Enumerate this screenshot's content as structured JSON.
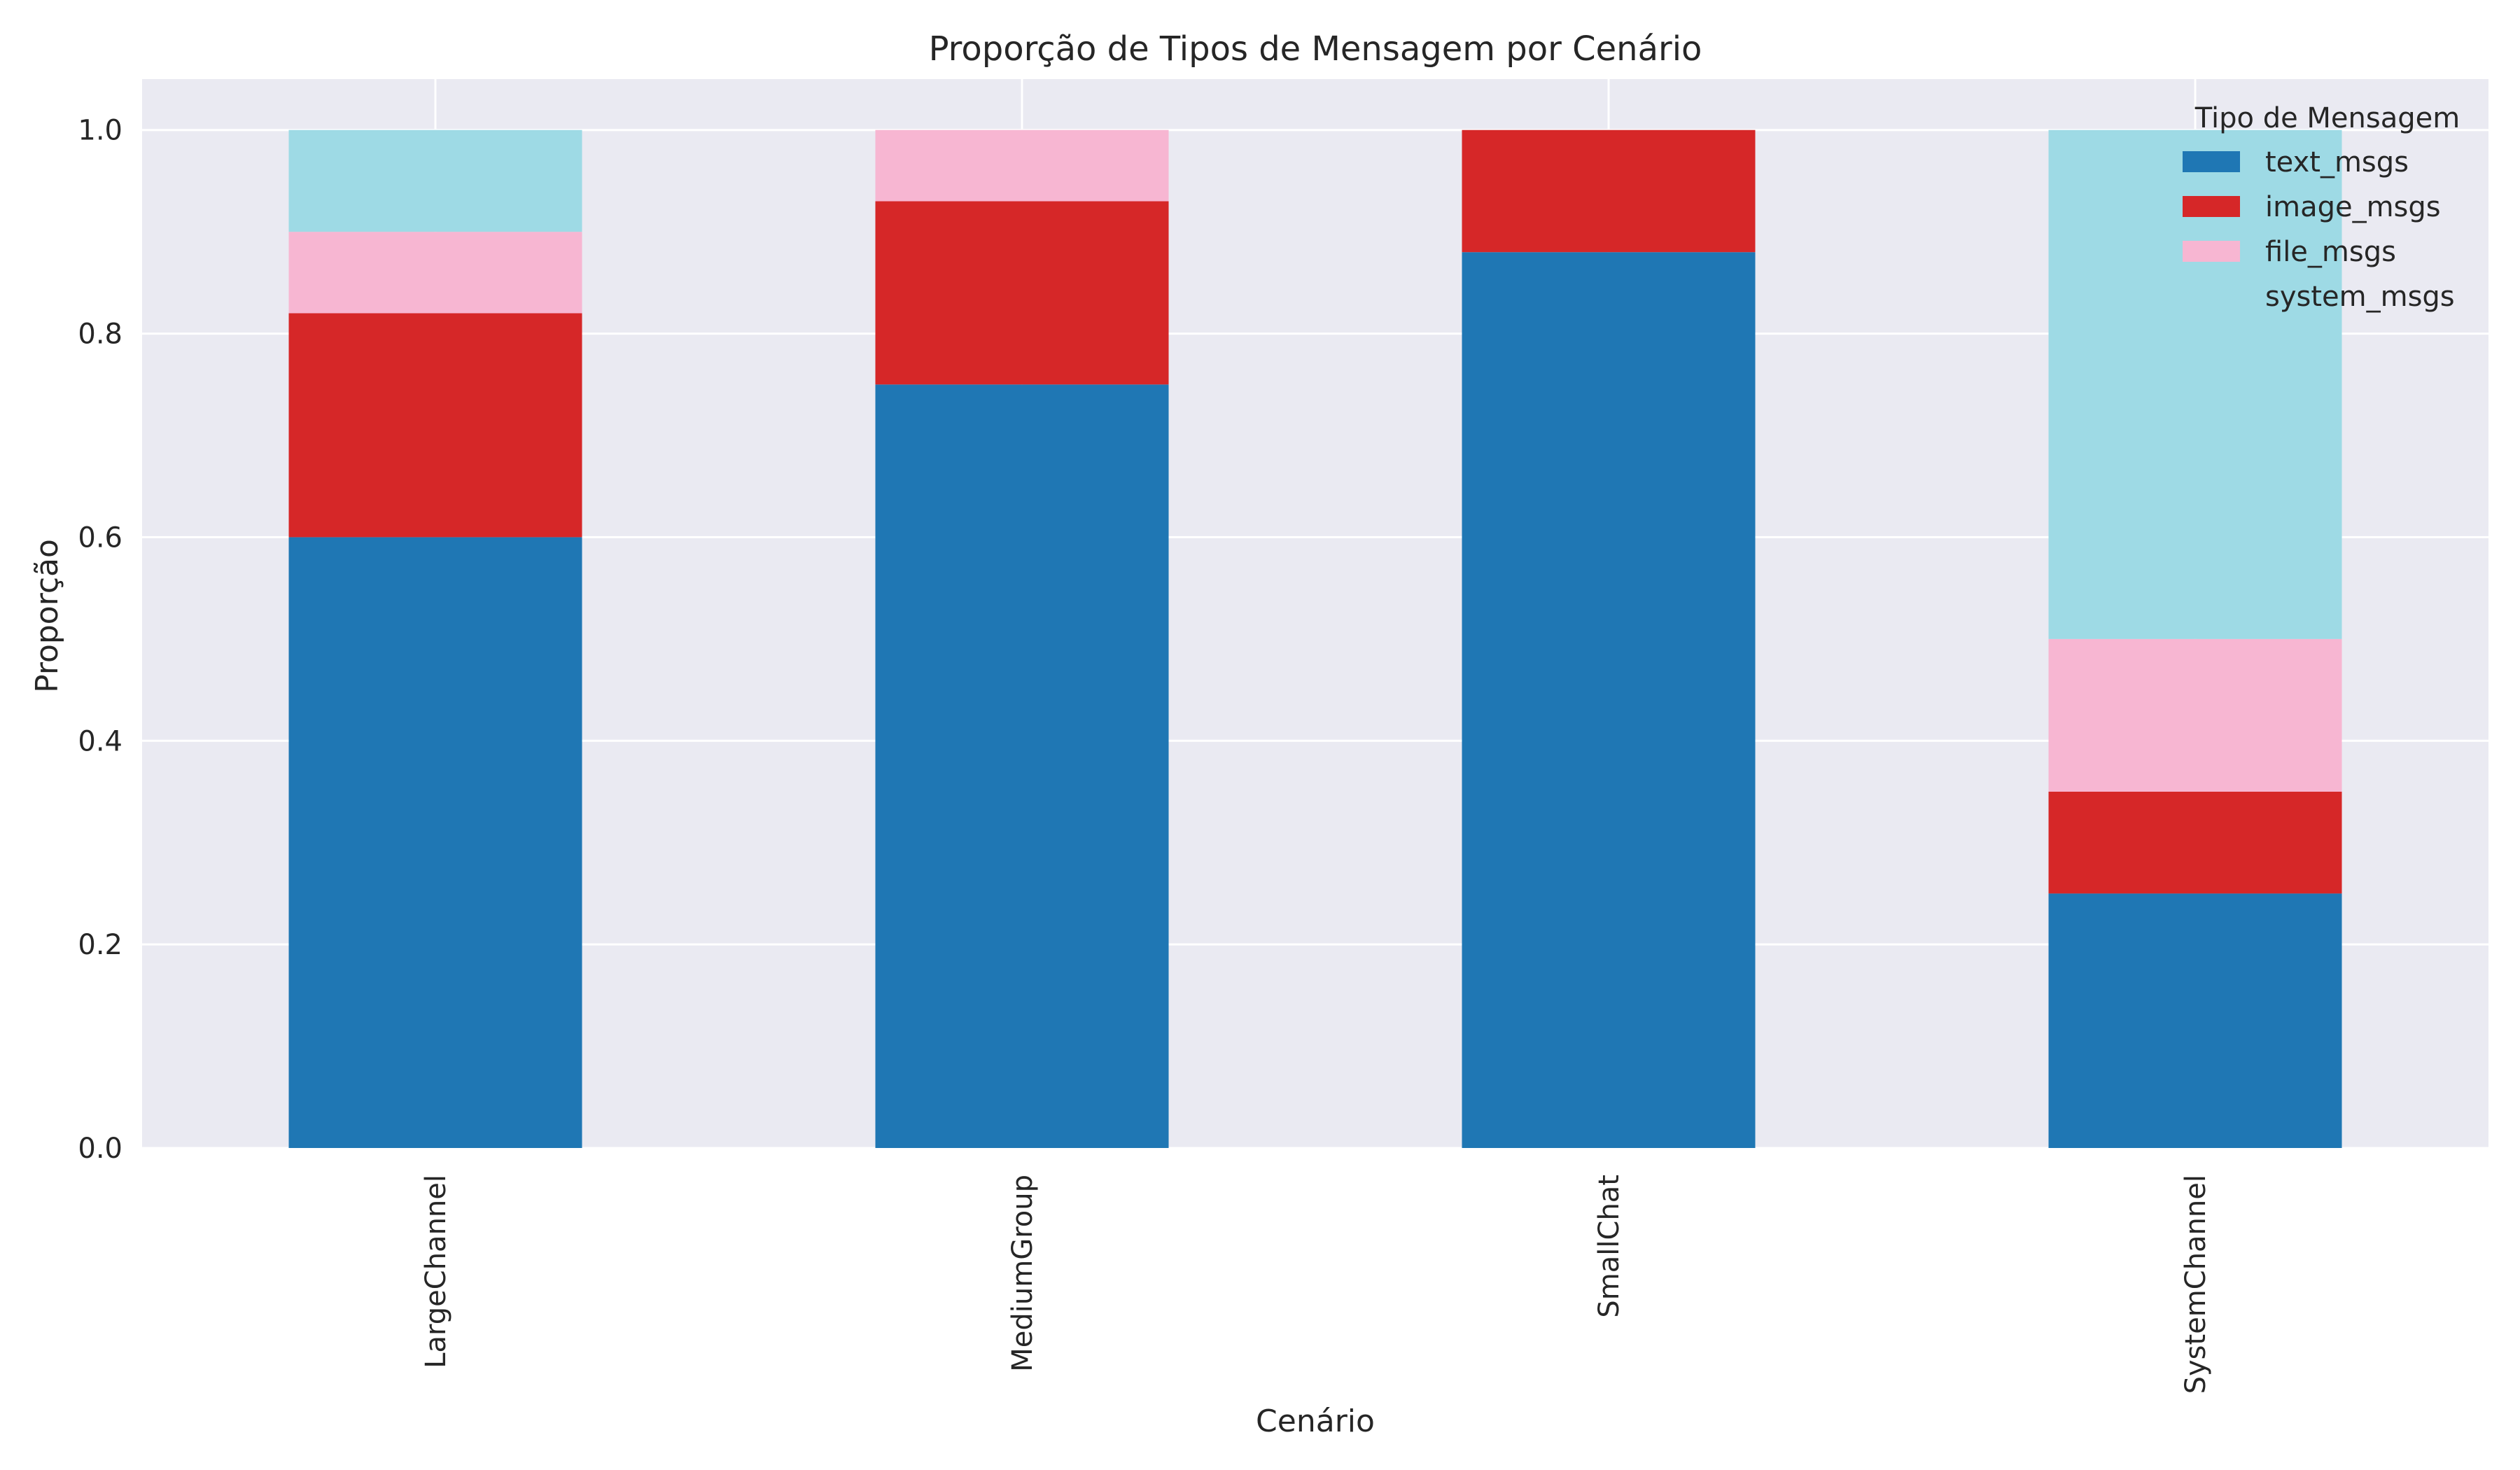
{
  "chart_data": {
    "type": "bar",
    "stacked": true,
    "title": "Proporção de Tipos de Mensagem por Cenário",
    "xlabel": "Cenário",
    "ylabel": "Proporção",
    "categories": [
      "LargeChannel",
      "MediumGroup",
      "SmallChat",
      "SystemChannel"
    ],
    "series": [
      {
        "name": "text_msgs",
        "color": "#1f77b4",
        "values": [
          0.6,
          0.75,
          0.88,
          0.25
        ]
      },
      {
        "name": "image_msgs",
        "color": "#d62728",
        "values": [
          0.22,
          0.18,
          0.12,
          0.1
        ]
      },
      {
        "name": "file_msgs",
        "color": "#f7b6d2",
        "values": [
          0.08,
          0.07,
          0.0,
          0.15
        ]
      },
      {
        "name": "system_msgs",
        "color": "#9edae5",
        "values": [
          0.1,
          0.0,
          0.0,
          0.5
        ]
      }
    ],
    "ylim": [
      0,
      1.05
    ],
    "yticks": [
      "0.0",
      "0.2",
      "0.4",
      "0.6",
      "0.8",
      "1.0"
    ],
    "grid": true,
    "legend": {
      "title": "Tipo de Mensagem",
      "placement": "top-right"
    },
    "background": "#eaeaf2"
  }
}
